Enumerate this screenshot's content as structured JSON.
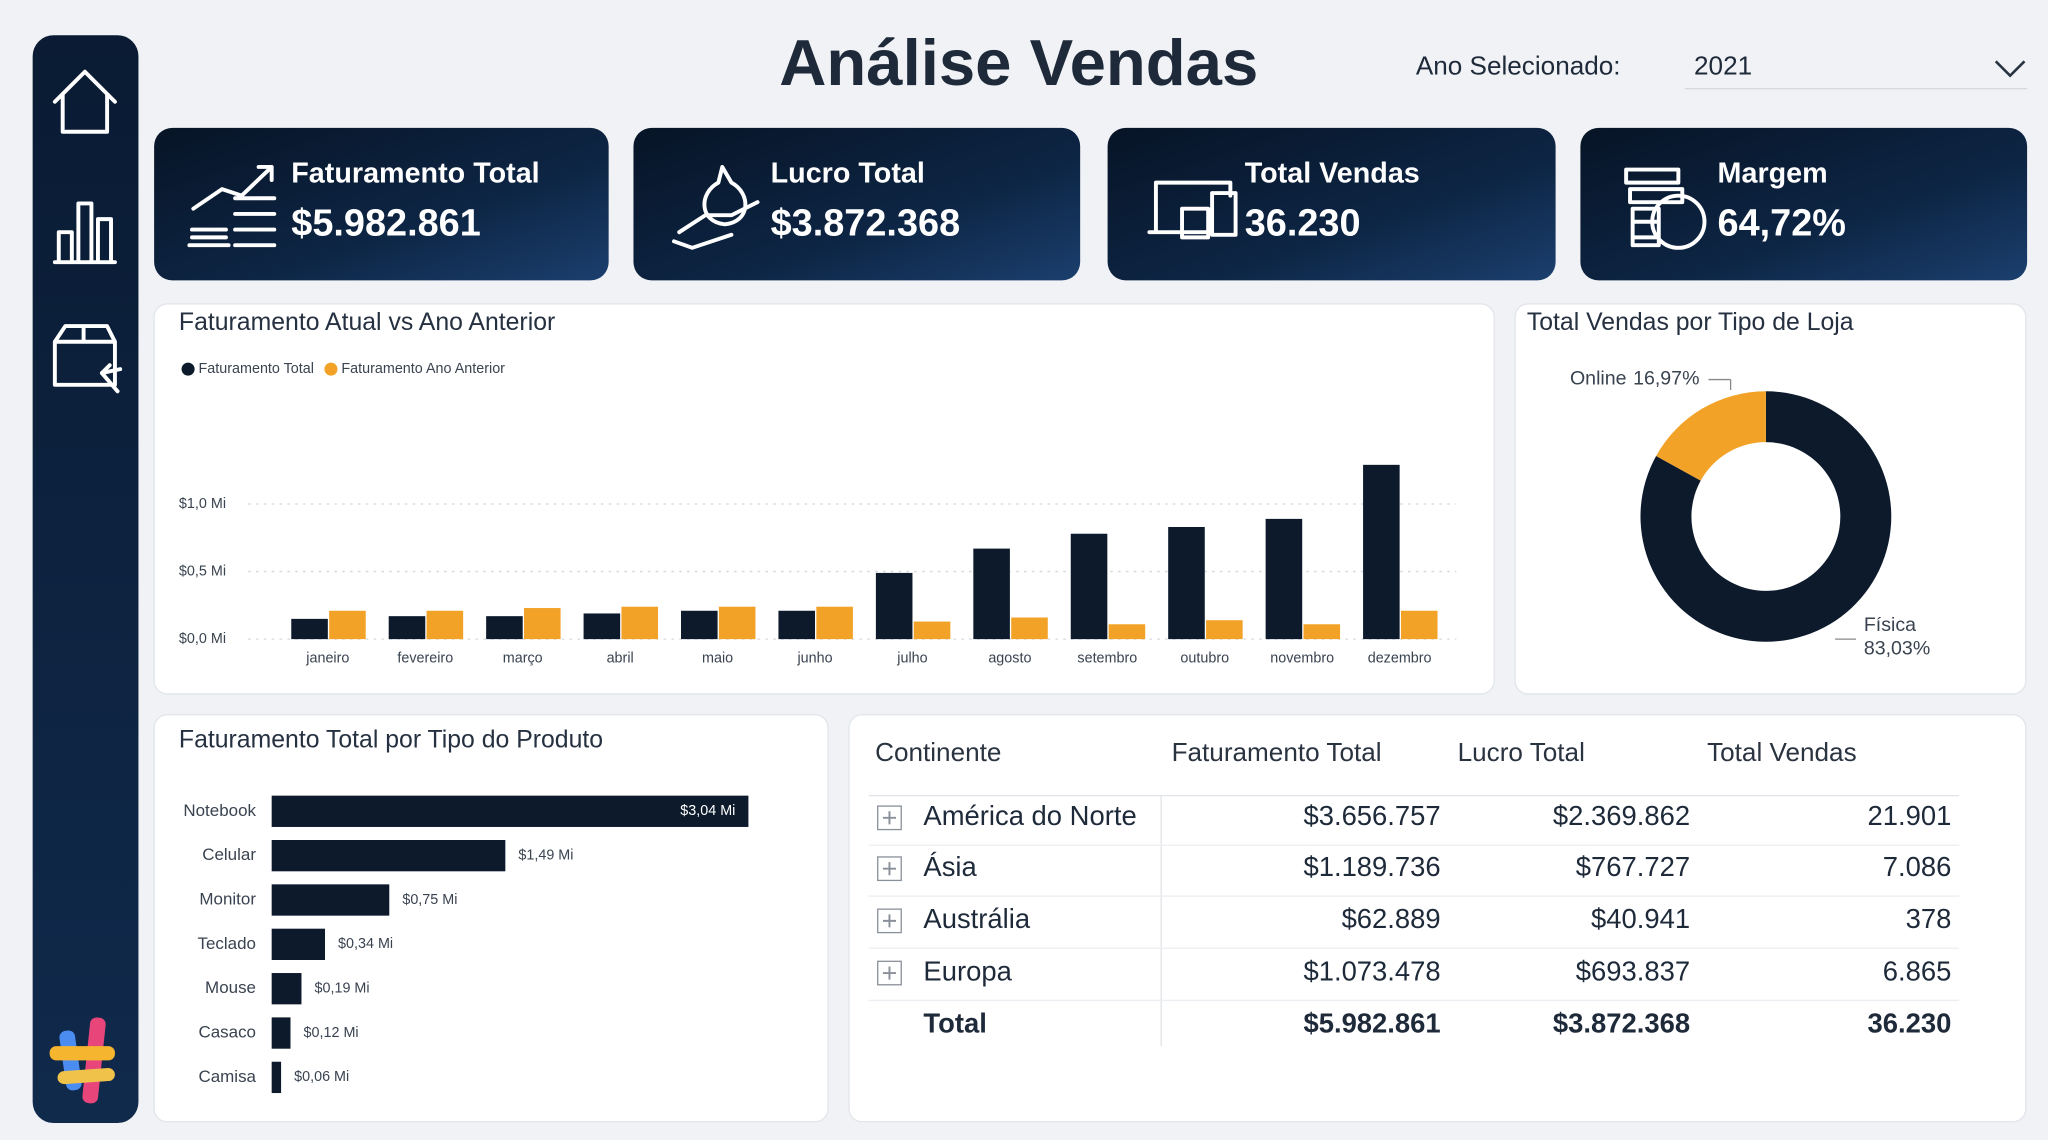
{
  "header": {
    "title": "Análise Vendas",
    "filter_label": "Ano Selecionado:",
    "filter_value": "2021"
  },
  "kpis": [
    {
      "label": "Faturamento Total",
      "value": "$5.982.861"
    },
    {
      "label": "Lucro Total",
      "value": "$3.872.368"
    },
    {
      "label": "Total Vendas",
      "value": "36.230"
    },
    {
      "label": "Margem",
      "value": "64,72%"
    }
  ],
  "chart_data": [
    {
      "type": "bar",
      "title": "Faturamento Atual vs Ano Anterior",
      "categories": [
        "janeiro",
        "fevereiro",
        "março",
        "abril",
        "maio",
        "junho",
        "julho",
        "agosto",
        "setembro",
        "outubro",
        "novembro",
        "dezembro"
      ],
      "series": [
        {
          "name": "Faturamento Total",
          "color": "#0c1a2c",
          "values": [
            0.15,
            0.17,
            0.17,
            0.19,
            0.21,
            0.21,
            0.49,
            0.67,
            0.78,
            0.83,
            0.89,
            1.29
          ]
        },
        {
          "name": "Faturamento Ano Anterior",
          "color": "#f2a227",
          "values": [
            0.21,
            0.21,
            0.23,
            0.24,
            0.24,
            0.24,
            0.13,
            0.16,
            0.11,
            0.14,
            0.11,
            0.21
          ]
        }
      ],
      "ylim": [
        0,
        1.35
      ],
      "yticks": [
        {
          "value": 0,
          "label": "$0,0 Mi"
        },
        {
          "value": 0.5,
          "label": "$0,5 Mi"
        },
        {
          "value": 1.0,
          "label": "$1,0 Mi"
        }
      ],
      "grid": true,
      "legend": "top-left"
    },
    {
      "type": "donut",
      "title": "Total Vendas por Tipo de Loja",
      "categories": [
        "Física",
        "Online"
      ],
      "values": [
        83.03,
        16.97
      ],
      "value_labels": [
        "83,03%",
        "16,97%"
      ],
      "colors": [
        "#0c1a2c",
        "#f2a227"
      ]
    },
    {
      "type": "barh",
      "title": "Faturamento Total por Tipo do Produto",
      "categories": [
        "Notebook",
        "Celular",
        "Monitor",
        "Teclado",
        "Mouse",
        "Casaco",
        "Camisa"
      ],
      "values": [
        3.04,
        1.49,
        0.75,
        0.34,
        0.19,
        0.12,
        0.06
      ],
      "value_labels": [
        "$3,04 Mi",
        "$1,49 Mi",
        "$0,75 Mi",
        "$0,34 Mi",
        "$0,19 Mi",
        "$0,12 Mi",
        "$0,06 Mi"
      ],
      "color": "#0c1a2c"
    }
  ],
  "table": {
    "columns": [
      "Continente",
      "Faturamento Total",
      "Lucro Total",
      "Total Vendas"
    ],
    "rows": [
      [
        "América do Norte",
        "$3.656.757",
        "$2.369.862",
        "21.901"
      ],
      [
        "Ásia",
        "$1.189.736",
        "$767.727",
        "7.086"
      ],
      [
        "Austrália",
        "$62.889",
        "$40.941",
        "378"
      ],
      [
        "Europa",
        "$1.073.478",
        "$693.837",
        "6.865"
      ]
    ],
    "total": [
      "Total",
      "$5.982.861",
      "$3.872.368",
      "36.230"
    ]
  }
}
